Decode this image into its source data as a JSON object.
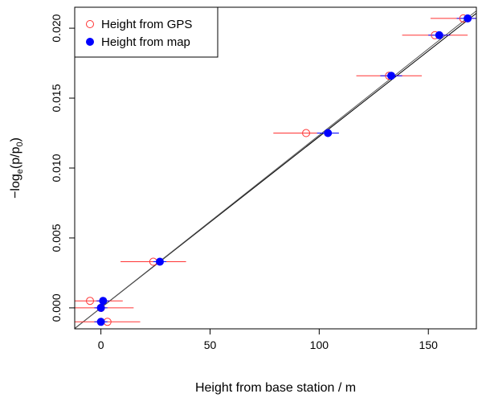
{
  "chart_data": {
    "type": "scatter",
    "xlabel": "Height from base station / m",
    "ylabel": "−log_e(p/p_0)",
    "xlim": [
      -12,
      172
    ],
    "ylim": [
      -0.0015,
      0.0215
    ],
    "x_ticks": [
      0,
      50,
      100,
      150
    ],
    "x_tick_labels": [
      "0",
      "50",
      "100",
      "150"
    ],
    "y_ticks": [
      0.0,
      0.005,
      0.01,
      0.015,
      0.02
    ],
    "y_tick_labels": [
      "0.000",
      "0.005",
      "0.010",
      "0.015",
      "0.020"
    ],
    "legend_position": "top-left",
    "series": [
      {
        "name": "Height from GPS",
        "marker": "open-circle",
        "color": "#ff3333",
        "points": [
          {
            "x": 3,
            "y": -0.001,
            "xerr": 15
          },
          {
            "x": 0,
            "y": 0.0,
            "xerr": 15
          },
          {
            "x": -5,
            "y": 0.0005,
            "xerr": 15
          },
          {
            "x": 24,
            "y": 0.0033,
            "xerr": 15
          },
          {
            "x": 94,
            "y": 0.0125,
            "xerr": 15
          },
          {
            "x": 132,
            "y": 0.0166,
            "xerr": 15
          },
          {
            "x": 153,
            "y": 0.0195,
            "xerr": 15
          },
          {
            "x": 166,
            "y": 0.0207,
            "xerr": 15
          }
        ]
      },
      {
        "name": "Height from map",
        "marker": "filled-circle",
        "color": "#0000ff",
        "points": [
          {
            "x": 0,
            "y": -0.001,
            "xerr": 3
          },
          {
            "x": 0,
            "y": 0.0,
            "xerr": 3
          },
          {
            "x": 1,
            "y": 0.0005,
            "xerr": 3
          },
          {
            "x": 27,
            "y": 0.0033,
            "xerr": 3
          },
          {
            "x": 104,
            "y": 0.0125,
            "xerr": 5
          },
          {
            "x": 133,
            "y": 0.0166,
            "xerr": 5
          },
          {
            "x": 155,
            "y": 0.0195,
            "xerr": 5
          },
          {
            "x": 168,
            "y": 0.0207,
            "xerr": 5
          }
        ]
      }
    ],
    "fit_lines": [
      {
        "slope": 0.0001225,
        "intercept": 0.0
      },
      {
        "slope": 0.0001235,
        "intercept": 0.0
      }
    ]
  }
}
